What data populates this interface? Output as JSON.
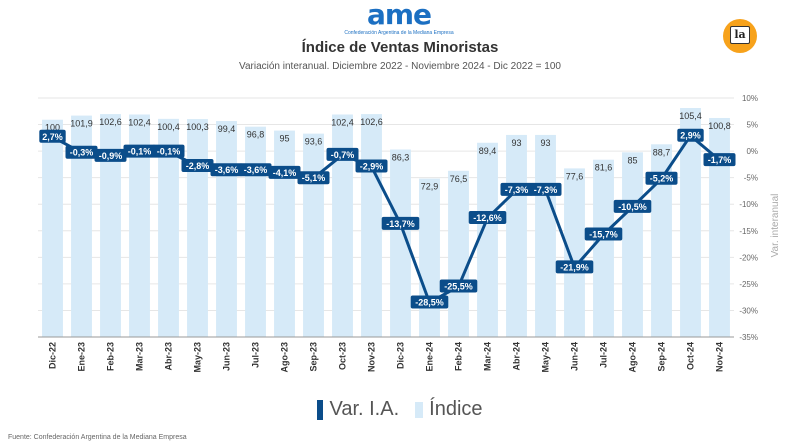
{
  "header": {
    "logo_text": "ame",
    "logo_sub": "Confederación Argentina de la Mediana Empresa",
    "badge": "la"
  },
  "chart_data": {
    "type": "bar",
    "title": "Índice de Ventas Minoristas",
    "subtitle": "Variación interanual. Diciembre 2022 - Noviembre 2024 - Dic 2022 = 100",
    "categories": [
      "Dic-22",
      "Ene-23",
      "Feb-23",
      "Mar-23",
      "Abr-23",
      "May-23",
      "Jun-23",
      "Jul-23",
      "Ago-23",
      "Sep-23",
      "Oct-23",
      "Nov-23",
      "Dic-23",
      "Ene-24",
      "Feb-24",
      "Mar-24",
      "Abr-24",
      "May-24",
      "Jun-24",
      "Jul-24",
      "Ago-24",
      "Sep-24",
      "Oct-24",
      "Nov-24"
    ],
    "series": [
      {
        "name": "Índice",
        "type": "bar",
        "color": "#d6eaf8",
        "values": [
          100,
          101.9,
          102.6,
          102.4,
          100.4,
          100.3,
          99.4,
          96.8,
          95,
          93.6,
          102.4,
          102.6,
          86.3,
          72.9,
          76.5,
          89.4,
          93,
          93,
          77.6,
          81.6,
          85,
          88.7,
          105.4,
          100.8
        ],
        "labels": [
          "100",
          "101,9",
          "102,6",
          "102,4",
          "100,4",
          "100,3",
          "99,4",
          "96,8",
          "95",
          "93,6",
          "102,4",
          "102,6",
          "86,3",
          "72,9",
          "76,5",
          "89,4",
          "93",
          "93",
          "77,6",
          "81,6",
          "85",
          "88,7",
          "105,4",
          "100,8"
        ]
      },
      {
        "name": "Var. I.A.",
        "type": "line",
        "color": "#0b4d8a",
        "values": [
          2.7,
          -0.3,
          -0.9,
          -0.1,
          -0.1,
          -2.8,
          -3.6,
          -3.6,
          -4.1,
          -5.1,
          -0.7,
          -2.9,
          -13.7,
          -28.5,
          -25.5,
          -12.6,
          -7.3,
          -7.3,
          -21.9,
          -15.7,
          -10.5,
          -5.2,
          2.9,
          -1.7
        ],
        "labels": [
          "2,7%",
          "-0,3%",
          "-0,9%",
          "-0,1%",
          "-0,1%",
          "-2,8%",
          "-3,6%",
          "-3,6%",
          "-4,1%",
          "-5,1%",
          "-0,7%",
          "-2,9%",
          "-13,7%",
          "-28,5%",
          "-25,5%",
          "-12,6%",
          "-7,3%",
          "-7,3%",
          "-21,9%",
          "-15,7%",
          "-10,5%",
          "-5,2%",
          "2,9%",
          "-1,7%"
        ]
      }
    ],
    "y_right": {
      "label": "Var. interanual",
      "min": -35,
      "max": 10,
      "step": 5,
      "tick_labels": [
        "-35%",
        "-30%",
        "-25%",
        "-20%",
        "-15%",
        "-10%",
        "-5%",
        "0%",
        "5%",
        "10%"
      ]
    },
    "bar_scale": {
      "min": 0,
      "max": 110
    },
    "legend": {
      "position": "bottom",
      "items": [
        "Var. I.A.",
        "Índice"
      ]
    },
    "grid": true
  },
  "footer": {
    "source": "Fuente: Confederación Argentina de la Mediana Empresa"
  }
}
